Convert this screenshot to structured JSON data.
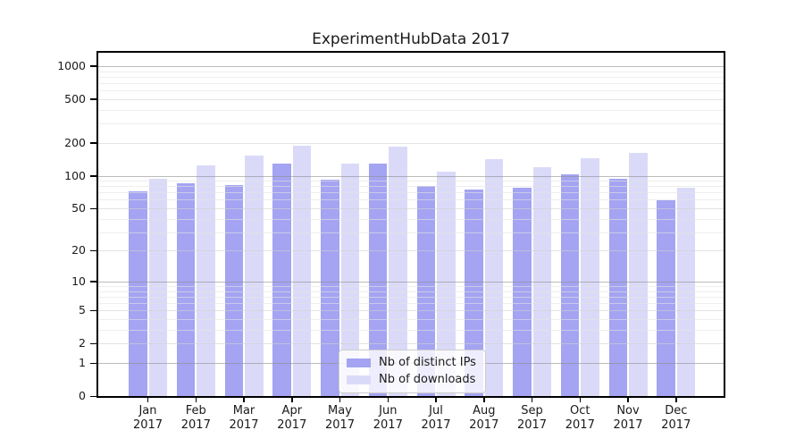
{
  "chart_data": {
    "type": "bar",
    "title": "ExperimentHubData 2017",
    "categories": [
      "Jan",
      "Feb",
      "Mar",
      "Apr",
      "May",
      "Jun",
      "Jul",
      "Aug",
      "Sep",
      "Oct",
      "Nov",
      "Dec"
    ],
    "category_sublabel": "2017",
    "series": [
      {
        "name": "Nb of distinct IPs",
        "color": "#a4a4f2",
        "values": [
          72,
          85,
          82,
          130,
          92,
          129,
          80,
          75,
          78,
          102,
          93,
          59
        ]
      },
      {
        "name": "Nb of downloads",
        "color": "#dadaf8",
        "values": [
          94,
          124,
          154,
          188,
          128,
          185,
          108,
          141,
          120,
          145,
          163,
          77
        ]
      }
    ],
    "y_scale": "log10(value+1)",
    "y_ticks": [
      0,
      1,
      2,
      5,
      10,
      20,
      50,
      100,
      200,
      500,
      1000
    ],
    "y_major_gridlines": [
      1,
      10,
      100,
      1000
    ],
    "y_labeled_minor_gridlines": [
      2,
      5,
      20,
      50,
      200,
      500
    ],
    "ylim": [
      0,
      1320
    ],
    "grid": true,
    "legend": {
      "position": "bottom-center"
    }
  }
}
